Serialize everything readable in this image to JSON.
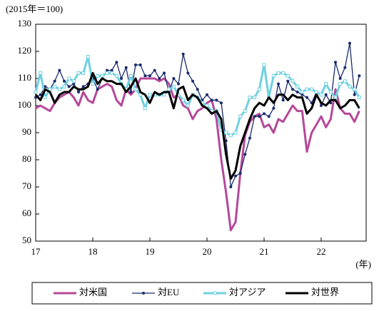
{
  "chart_data": {
    "type": "line",
    "unit_label": "(2015年＝100)",
    "x_unit_label": "(年)",
    "categories": [
      "17",
      null,
      null,
      null,
      null,
      null,
      null,
      null,
      null,
      null,
      null,
      null,
      "18",
      null,
      null,
      null,
      null,
      null,
      null,
      null,
      null,
      null,
      null,
      null,
      "19",
      null,
      null,
      null,
      null,
      null,
      null,
      null,
      null,
      null,
      null,
      null,
      "20",
      null,
      null,
      null,
      null,
      null,
      null,
      null,
      null,
      null,
      null,
      null,
      "21",
      null,
      null,
      null,
      null,
      null,
      null,
      null,
      null,
      null,
      null,
      null,
      "22",
      null,
      null,
      null,
      null,
      null,
      null,
      null,
      null
    ],
    "series": [
      {
        "name": "対米国",
        "color": "#b5489a",
        "marker": "none",
        "values": [
          99,
          100,
          99,
          98,
          101,
          103,
          104,
          105,
          103,
          100,
          105,
          102,
          101,
          106,
          107,
          108,
          107,
          102,
          100,
          106,
          104,
          106,
          110,
          110,
          110,
          110,
          109,
          110,
          108,
          103,
          104,
          100,
          99,
          95,
          98,
          99,
          101,
          102,
          95,
          80,
          68,
          54,
          57,
          75,
          89,
          94,
          96,
          97,
          92,
          93,
          90,
          95,
          94,
          97,
          100,
          98,
          98,
          83,
          90,
          93,
          96,
          92,
          95,
          106,
          99,
          97,
          97,
          94,
          98
        ]
      },
      {
        "name": "対EU",
        "color": "#1a2a6c",
        "marker": "dot",
        "values": [
          103,
          104,
          107,
          106,
          109,
          113,
          109,
          107,
          108,
          105,
          107,
          108,
          110,
          106,
          110,
          113,
          113,
          116,
          110,
          114,
          105,
          115,
          115,
          111,
          111,
          113,
          110,
          112,
          105,
          110,
          108,
          119,
          112,
          109,
          106,
          102,
          104,
          102,
          102,
          101,
          87,
          70,
          74,
          75,
          82,
          88,
          96,
          96,
          97,
          96,
          99,
          108,
          102,
          109,
          106,
          105,
          104,
          103,
          101,
          105,
          100,
          104,
          101,
          116,
          110,
          114,
          123,
          104,
          111
        ]
      },
      {
        "name": "対アジア",
        "color": "#6fd0e0",
        "marker": "square",
        "values": [
          105,
          112,
          103,
          106,
          107,
          106,
          107,
          110,
          109,
          112,
          112,
          118,
          108,
          111,
          111,
          112,
          112,
          111,
          108,
          106,
          111,
          106,
          104,
          99,
          104,
          104,
          104,
          104,
          106,
          107,
          104,
          102,
          100,
          104,
          103,
          101,
          100,
          98,
          98,
          91,
          90,
          89,
          90,
          96,
          98,
          103,
          103,
          106,
          115,
          103,
          111,
          112,
          112,
          111,
          109,
          107,
          105,
          106,
          106,
          105,
          104,
          108,
          105,
          103,
          108,
          109,
          107,
          106,
          103
        ]
      },
      {
        "name": "対世界",
        "color": "#000000",
        "marker": "none",
        "values": [
          104,
          102,
          106,
          105,
          101,
          104,
          105,
          105,
          107,
          106,
          106,
          107,
          112,
          108,
          110,
          109,
          109,
          108,
          108,
          105,
          107,
          110,
          105,
          104,
          101,
          105,
          104,
          105,
          105,
          99,
          106,
          107,
          102,
          104,
          103,
          100,
          99,
          97,
          98,
          95,
          82,
          73,
          76,
          85,
          90,
          95,
          99,
          101,
          100,
          103,
          101,
          104,
          104,
          102,
          104,
          103,
          103,
          97,
          99,
          104,
          101,
          100,
          102,
          102,
          99,
          100,
          102,
          102,
          99
        ]
      }
    ],
    "ylim": [
      50,
      130
    ],
    "yticks": [
      50,
      60,
      70,
      80,
      90,
      100,
      110,
      120,
      130
    ],
    "legend": "bottom"
  }
}
